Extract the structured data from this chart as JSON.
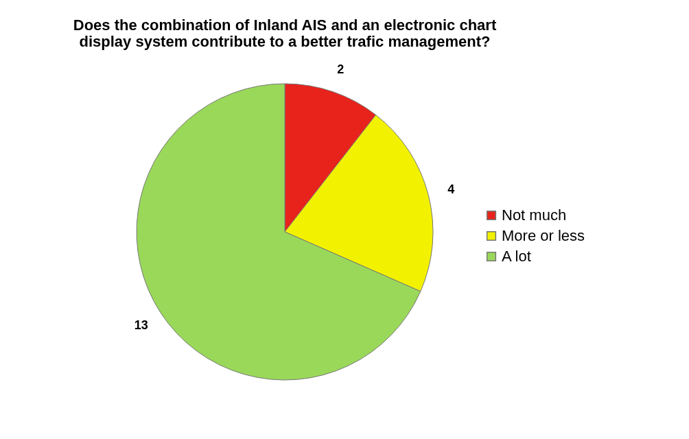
{
  "chart_data": {
    "type": "pie",
    "title": "Does the combination of Inland AIS and an electronic chart display system contribute to a better trafic management?",
    "categories": [
      "Not much",
      "More or less",
      "A lot"
    ],
    "values": [
      2,
      4,
      13
    ],
    "colors": [
      "#e8231c",
      "#f2f200",
      "#9ad85a"
    ],
    "data_labels": true,
    "legend": "right"
  }
}
